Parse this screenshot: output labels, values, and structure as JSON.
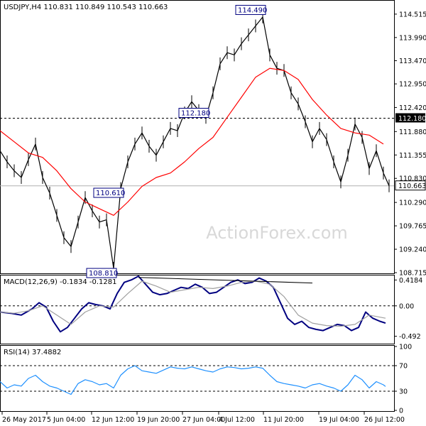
{
  "chart_data": [
    {
      "panel": "price",
      "type": "line",
      "header": "USDJPY,H4  110.831 110.849 110.543 110.663",
      "y_ticks": [
        "114.515",
        "113.990",
        "113.470",
        "112.950",
        "112.420",
        "111.880",
        "111.355",
        "110.830",
        "110.290",
        "109.765",
        "109.240",
        "108.715"
      ],
      "ylim": [
        108.715,
        114.8
      ],
      "current_price_label": "110.663",
      "current_price": 110.663,
      "resistance_label": "112.180",
      "resistance": 112.18,
      "annotations": [
        {
          "text": "114.490",
          "value": 114.49
        },
        {
          "text": "108.810",
          "value": 108.81
        },
        {
          "text": "112.180",
          "value": 112.18
        },
        {
          "text": "110.610",
          "value": 110.61
        }
      ],
      "series": [
        {
          "color": "#000000",
          "x": [
            0,
            10,
            20,
            30,
            40,
            50,
            60,
            70,
            80,
            90,
            100,
            110,
            120,
            130,
            140,
            150,
            160,
            170,
            180,
            190,
            200,
            210,
            220,
            230,
            240,
            250,
            260,
            270,
            280,
            290,
            300,
            310,
            320,
            330,
            340,
            350,
            360,
            370,
            380,
            390,
            400,
            410,
            420,
            430,
            440,
            450,
            460,
            470,
            480,
            490,
            500,
            510,
            520,
            530,
            540,
            548
          ],
          "y": [
            111.45,
            111.2,
            111.0,
            110.85,
            111.25,
            111.6,
            110.85,
            110.5,
            110.0,
            109.5,
            109.3,
            109.85,
            110.4,
            110.1,
            109.85,
            109.9,
            108.81,
            110.6,
            111.2,
            111.6,
            111.85,
            111.55,
            111.35,
            111.65,
            111.95,
            111.9,
            112.3,
            112.55,
            112.35,
            112.2,
            112.75,
            113.4,
            113.65,
            113.6,
            113.85,
            114.05,
            114.25,
            114.45,
            113.6,
            113.3,
            113.25,
            112.75,
            112.5,
            112.1,
            111.65,
            111.95,
            111.7,
            111.2,
            110.75,
            111.35,
            112.05,
            111.75,
            111.05,
            111.45,
            110.95,
            110.663
          ]
        },
        {
          "color": "#ff0000",
          "x": [
            0,
            20,
            40,
            60,
            80,
            100,
            120,
            140,
            160,
            180,
            200,
            220,
            240,
            260,
            280,
            300,
            320,
            340,
            360,
            380,
            400,
            420,
            440,
            460,
            480,
            500,
            520,
            540
          ],
          "y": [
            111.9,
            111.65,
            111.4,
            111.3,
            111.0,
            110.6,
            110.3,
            110.15,
            110.0,
            110.3,
            110.65,
            110.85,
            110.95,
            111.2,
            111.5,
            111.75,
            112.2,
            112.65,
            113.1,
            113.3,
            113.25,
            113.05,
            112.6,
            112.25,
            111.95,
            111.85,
            111.8,
            111.6
          ]
        }
      ]
    },
    {
      "panel": "macd",
      "type": "line",
      "header": "MACD(12,26,9) -0.1834 -0.1281",
      "y_ticks": [
        "0.4184",
        "0.00",
        "-0.492"
      ],
      "ylim": [
        -0.6,
        0.48
      ],
      "series": [
        {
          "color": "#000080",
          "x": [
            0,
            15,
            30,
            45,
            55,
            65,
            75,
            85,
            95,
            105,
            115,
            125,
            135,
            145,
            155,
            165,
            175,
            185,
            195,
            205,
            215,
            225,
            235,
            245,
            255,
            265,
            275,
            285,
            295,
            305,
            315,
            325,
            335,
            345,
            355,
            365,
            375,
            385,
            395,
            405,
            415,
            425,
            435,
            445,
            455,
            465,
            475,
            485,
            495,
            505,
            515,
            525,
            535,
            543
          ],
          "y": [
            -0.1,
            -0.12,
            -0.15,
            -0.05,
            0.05,
            -0.02,
            -0.25,
            -0.42,
            -0.35,
            -0.2,
            -0.05,
            0.05,
            0.02,
            0.0,
            -0.05,
            0.2,
            0.38,
            0.42,
            0.48,
            0.35,
            0.22,
            0.18,
            0.2,
            0.25,
            0.3,
            0.28,
            0.35,
            0.3,
            0.2,
            0.22,
            0.3,
            0.38,
            0.42,
            0.36,
            0.38,
            0.45,
            0.4,
            0.3,
            0.05,
            -0.2,
            -0.3,
            -0.25,
            -0.35,
            -0.38,
            -0.4,
            -0.35,
            -0.3,
            -0.32,
            -0.4,
            -0.35,
            -0.1,
            -0.2,
            -0.25,
            -0.28
          ]
        },
        {
          "color": "#a0a0a0",
          "x": [
            0,
            20,
            40,
            60,
            80,
            100,
            120,
            140,
            160,
            180,
            200,
            220,
            240,
            260,
            280,
            300,
            320,
            340,
            360,
            380,
            400,
            420,
            440,
            460,
            480,
            500,
            520,
            543
          ],
          "y": [
            -0.1,
            -0.12,
            -0.08,
            0.0,
            -0.15,
            -0.3,
            -0.1,
            0.0,
            -0.02,
            0.2,
            0.4,
            0.32,
            0.22,
            0.26,
            0.3,
            0.28,
            0.32,
            0.38,
            0.4,
            0.35,
            0.15,
            -0.15,
            -0.28,
            -0.32,
            -0.33,
            -0.3,
            -0.15,
            -0.2
          ]
        }
      ],
      "trendline": {
        "color": "#000000",
        "x": [
          195,
          440
        ],
        "y": [
          0.46,
          0.37
        ]
      }
    },
    {
      "panel": "rsi",
      "type": "line",
      "header": "RSI(14) 37.4882",
      "y_ticks": [
        "100",
        "70",
        "30",
        "0"
      ],
      "ylim": [
        0,
        100
      ],
      "levels": [
        70,
        30
      ],
      "series": [
        {
          "color": "#1e90ff",
          "x": [
            0,
            10,
            20,
            30,
            40,
            50,
            60,
            70,
            80,
            90,
            100,
            110,
            120,
            130,
            140,
            150,
            160,
            170,
            180,
            190,
            200,
            210,
            220,
            230,
            240,
            250,
            260,
            270,
            280,
            290,
            300,
            310,
            320,
            330,
            340,
            350,
            360,
            370,
            380,
            390,
            400,
            410,
            420,
            430,
            440,
            450,
            460,
            470,
            480,
            490,
            500,
            510,
            520,
            530,
            540,
            543
          ],
          "y": [
            45,
            35,
            40,
            38,
            50,
            55,
            45,
            38,
            35,
            30,
            25,
            42,
            48,
            45,
            40,
            42,
            35,
            55,
            65,
            70,
            62,
            60,
            58,
            63,
            68,
            66,
            65,
            68,
            65,
            62,
            60,
            65,
            68,
            67,
            65,
            66,
            68,
            66,
            55,
            45,
            42,
            40,
            38,
            35,
            40,
            42,
            38,
            35,
            30,
            40,
            55,
            48,
            35,
            45,
            40,
            37.5
          ]
        }
      ]
    }
  ],
  "x_axis": {
    "labels": [
      "26 May 2017",
      "5 Jun 04:00",
      "12 Jun 12:00",
      "19 Jun 20:00",
      "27 Jun 04:00",
      "4 Jul 12:00",
      "11 Jul 20:00",
      "19 Jul 04:00",
      "26 Jul 12:00"
    ]
  },
  "watermark": "ActionForex.com"
}
